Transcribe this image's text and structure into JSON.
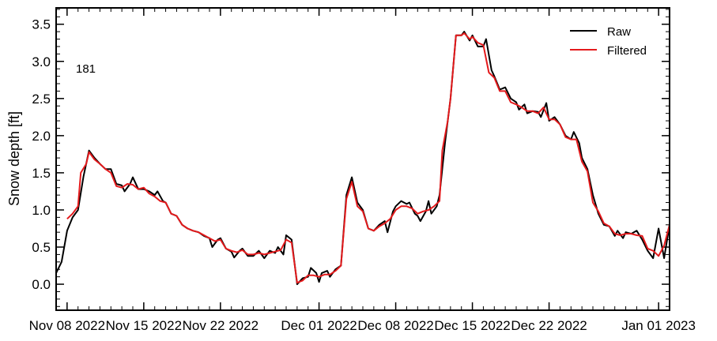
{
  "chart_data": {
    "type": "line",
    "title": "",
    "xlabel": "",
    "ylabel": "Snow depth [ft]",
    "annotation": "181",
    "x_ticks": [
      "Nov 08 2022",
      "Nov 15 2022",
      "Nov 22 2022",
      "Dec 01 2022",
      "Dec 08 2022",
      "Dec 15 2022",
      "Dec 22 2022",
      "Jan 01 2023"
    ],
    "y_ticks": [
      "0.0",
      "0.5",
      "1.0",
      "1.5",
      "2.0",
      "2.5",
      "3.0",
      "3.5"
    ],
    "xlim": [
      "2022-11-07",
      "2023-01-02"
    ],
    "ylim": [
      -0.35,
      3.72
    ],
    "grid": false,
    "legend_position": "top-right",
    "series": [
      {
        "name": "Raw",
        "color": "#000000",
        "points": [
          [
            "2022-11-07",
            0.15
          ],
          [
            "2022-11-07T12",
            0.3
          ],
          [
            "2022-11-08",
            0.72
          ],
          [
            "2022-11-08T12",
            0.9
          ],
          [
            "2022-11-09",
            1.0
          ],
          [
            "2022-11-09T12",
            1.45
          ],
          [
            "2022-11-10",
            1.8
          ],
          [
            "2022-11-10T12",
            1.7
          ],
          [
            "2022-11-11",
            1.62
          ],
          [
            "2022-11-11T12",
            1.55
          ],
          [
            "2022-11-12",
            1.55
          ],
          [
            "2022-11-12T12",
            1.35
          ],
          [
            "2022-11-13",
            1.33
          ],
          [
            "2022-11-13T06",
            1.25
          ],
          [
            "2022-11-13T18",
            1.35
          ],
          [
            "2022-11-14",
            1.44
          ],
          [
            "2022-11-14T12",
            1.28
          ],
          [
            "2022-11-15",
            1.28
          ],
          [
            "2022-11-15T12",
            1.25
          ],
          [
            "2022-11-16",
            1.2
          ],
          [
            "2022-11-16T06",
            1.25
          ],
          [
            "2022-11-16T18",
            1.12
          ],
          [
            "2022-11-17",
            1.1
          ],
          [
            "2022-11-17T12",
            0.95
          ],
          [
            "2022-11-18",
            0.92
          ],
          [
            "2022-11-18T12",
            0.8
          ],
          [
            "2022-11-19",
            0.75
          ],
          [
            "2022-11-19T12",
            0.72
          ],
          [
            "2022-11-20",
            0.7
          ],
          [
            "2022-11-20T12",
            0.65
          ],
          [
            "2022-11-21",
            0.62
          ],
          [
            "2022-11-21T06",
            0.5
          ],
          [
            "2022-11-21T18",
            0.6
          ],
          [
            "2022-11-22",
            0.62
          ],
          [
            "2022-11-22T12",
            0.48
          ],
          [
            "2022-11-23",
            0.44
          ],
          [
            "2022-11-23T06",
            0.36
          ],
          [
            "2022-11-23T18",
            0.45
          ],
          [
            "2022-11-24",
            0.48
          ],
          [
            "2022-11-24T12",
            0.38
          ],
          [
            "2022-11-25",
            0.38
          ],
          [
            "2022-11-25T12",
            0.45
          ],
          [
            "2022-11-26",
            0.35
          ],
          [
            "2022-11-26T12",
            0.45
          ],
          [
            "2022-11-27",
            0.42
          ],
          [
            "2022-11-27T06",
            0.5
          ],
          [
            "2022-11-27T18",
            0.4
          ],
          [
            "2022-11-28",
            0.66
          ],
          [
            "2022-11-28T12",
            0.6
          ],
          [
            "2022-11-29",
            0.0
          ],
          [
            "2022-11-29T12",
            0.08
          ],
          [
            "2022-11-30",
            0.1
          ],
          [
            "2022-11-30T06",
            0.22
          ],
          [
            "2022-11-30T18",
            0.15
          ],
          [
            "2022-12-01",
            0.03
          ],
          [
            "2022-12-01T06",
            0.15
          ],
          [
            "2022-12-01T18",
            0.18
          ],
          [
            "2022-12-02",
            0.1
          ],
          [
            "2022-12-02T12",
            0.2
          ],
          [
            "2022-12-03",
            0.25
          ],
          [
            "2022-12-03T12",
            1.2
          ],
          [
            "2022-12-04",
            1.44
          ],
          [
            "2022-12-04T12",
            1.1
          ],
          [
            "2022-12-05",
            1.0
          ],
          [
            "2022-12-05T12",
            0.75
          ],
          [
            "2022-12-06",
            0.72
          ],
          [
            "2022-12-06T12",
            0.8
          ],
          [
            "2022-12-07",
            0.85
          ],
          [
            "2022-12-07T06",
            0.7
          ],
          [
            "2022-12-07T18",
            0.98
          ],
          [
            "2022-12-08",
            1.05
          ],
          [
            "2022-12-08T12",
            1.12
          ],
          [
            "2022-12-09",
            1.08
          ],
          [
            "2022-12-09T06",
            1.1
          ],
          [
            "2022-12-09T18",
            0.95
          ],
          [
            "2022-12-10",
            0.92
          ],
          [
            "2022-12-10T06",
            0.85
          ],
          [
            "2022-12-10T18",
            0.98
          ],
          [
            "2022-12-11",
            1.12
          ],
          [
            "2022-12-11T06",
            0.95
          ],
          [
            "2022-12-11T18",
            1.05
          ],
          [
            "2022-12-12",
            1.2
          ],
          [
            "2022-12-12T12",
            1.9
          ],
          [
            "2022-12-13",
            2.5
          ],
          [
            "2022-12-13T12",
            3.35
          ],
          [
            "2022-12-14",
            3.35
          ],
          [
            "2022-12-14T06",
            3.4
          ],
          [
            "2022-12-14T18",
            3.28
          ],
          [
            "2022-12-15",
            3.35
          ],
          [
            "2022-12-15T12",
            3.2
          ],
          [
            "2022-12-16",
            3.2
          ],
          [
            "2022-12-16T06",
            3.3
          ],
          [
            "2022-12-16T18",
            2.88
          ],
          [
            "2022-12-17",
            2.8
          ],
          [
            "2022-12-17T12",
            2.62
          ],
          [
            "2022-12-18",
            2.65
          ],
          [
            "2022-12-18T12",
            2.5
          ],
          [
            "2022-12-19",
            2.45
          ],
          [
            "2022-12-19T06",
            2.35
          ],
          [
            "2022-12-19T18",
            2.42
          ],
          [
            "2022-12-20",
            2.3
          ],
          [
            "2022-12-20T12",
            2.33
          ],
          [
            "2022-12-21",
            2.32
          ],
          [
            "2022-12-21T06",
            2.25
          ],
          [
            "2022-12-21T18",
            2.44
          ],
          [
            "2022-12-22",
            2.2
          ],
          [
            "2022-12-22T12",
            2.25
          ],
          [
            "2022-12-23",
            2.15
          ],
          [
            "2022-12-23T12",
            2.0
          ],
          [
            "2022-12-24",
            1.95
          ],
          [
            "2022-12-24T06",
            2.05
          ],
          [
            "2022-12-24T18",
            1.9
          ],
          [
            "2022-12-25",
            1.7
          ],
          [
            "2022-12-25T12",
            1.55
          ],
          [
            "2022-12-26",
            1.2
          ],
          [
            "2022-12-26T12",
            0.95
          ],
          [
            "2022-12-27",
            0.8
          ],
          [
            "2022-12-27T12",
            0.78
          ],
          [
            "2022-12-28",
            0.65
          ],
          [
            "2022-12-28T06",
            0.72
          ],
          [
            "2022-12-28T18",
            0.62
          ],
          [
            "2022-12-29",
            0.7
          ],
          [
            "2022-12-29T12",
            0.68
          ],
          [
            "2022-12-30",
            0.72
          ],
          [
            "2022-12-30T12",
            0.6
          ],
          [
            "2022-12-31",
            0.45
          ],
          [
            "2022-12-31T12",
            0.35
          ],
          [
            "2023-01-01",
            0.75
          ],
          [
            "2023-01-01T12",
            0.35
          ],
          [
            "2023-01-02",
            0.8
          ]
        ]
      },
      {
        "name": "Filtered",
        "color": "#e41a1c",
        "points": [
          [
            "2022-11-08",
            0.88
          ],
          [
            "2022-11-08T12",
            0.95
          ],
          [
            "2022-11-09",
            1.05
          ],
          [
            "2022-11-09T06",
            1.5
          ],
          [
            "2022-11-09T18",
            1.62
          ],
          [
            "2022-11-10",
            1.78
          ],
          [
            "2022-11-10T12",
            1.68
          ],
          [
            "2022-11-11",
            1.62
          ],
          [
            "2022-11-11T12",
            1.55
          ],
          [
            "2022-11-12",
            1.5
          ],
          [
            "2022-11-12T12",
            1.32
          ],
          [
            "2022-11-13",
            1.3
          ],
          [
            "2022-11-13T12",
            1.35
          ],
          [
            "2022-11-14",
            1.34
          ],
          [
            "2022-11-14T12",
            1.28
          ],
          [
            "2022-11-15",
            1.3
          ],
          [
            "2022-11-15T12",
            1.22
          ],
          [
            "2022-11-16",
            1.18
          ],
          [
            "2022-11-16T12",
            1.12
          ],
          [
            "2022-11-17",
            1.1
          ],
          [
            "2022-11-17T12",
            0.95
          ],
          [
            "2022-11-18",
            0.92
          ],
          [
            "2022-11-18T12",
            0.8
          ],
          [
            "2022-11-19",
            0.75
          ],
          [
            "2022-11-19T12",
            0.72
          ],
          [
            "2022-11-20",
            0.7
          ],
          [
            "2022-11-20T12",
            0.66
          ],
          [
            "2022-11-21",
            0.62
          ],
          [
            "2022-11-21T12",
            0.58
          ],
          [
            "2022-11-22",
            0.6
          ],
          [
            "2022-11-22T12",
            0.48
          ],
          [
            "2022-11-23",
            0.45
          ],
          [
            "2022-11-23T12",
            0.43
          ],
          [
            "2022-11-24",
            0.46
          ],
          [
            "2022-11-24T12",
            0.4
          ],
          [
            "2022-11-25",
            0.4
          ],
          [
            "2022-11-25T12",
            0.42
          ],
          [
            "2022-11-26",
            0.4
          ],
          [
            "2022-11-26T12",
            0.42
          ],
          [
            "2022-11-27",
            0.44
          ],
          [
            "2022-11-27T12",
            0.46
          ],
          [
            "2022-11-28",
            0.6
          ],
          [
            "2022-11-28T12",
            0.56
          ],
          [
            "2022-11-29",
            0.02
          ],
          [
            "2022-11-29T12",
            0.05
          ],
          [
            "2022-11-30",
            0.12
          ],
          [
            "2022-11-30T12",
            0.12
          ],
          [
            "2022-12-01",
            0.1
          ],
          [
            "2022-12-01T12",
            0.13
          ],
          [
            "2022-12-02",
            0.13
          ],
          [
            "2022-12-02T12",
            0.18
          ],
          [
            "2022-12-03",
            0.25
          ],
          [
            "2022-12-03T12",
            1.15
          ],
          [
            "2022-12-04",
            1.38
          ],
          [
            "2022-12-04T12",
            1.05
          ],
          [
            "2022-12-05",
            0.98
          ],
          [
            "2022-12-05T12",
            0.75
          ],
          [
            "2022-12-06",
            0.72
          ],
          [
            "2022-12-06T12",
            0.78
          ],
          [
            "2022-12-07",
            0.82
          ],
          [
            "2022-12-07T12",
            0.88
          ],
          [
            "2022-12-08",
            1.0
          ],
          [
            "2022-12-08T12",
            1.05
          ],
          [
            "2022-12-09",
            1.05
          ],
          [
            "2022-12-09T12",
            1.02
          ],
          [
            "2022-12-10",
            0.95
          ],
          [
            "2022-12-10T12",
            0.98
          ],
          [
            "2022-12-11",
            1.0
          ],
          [
            "2022-12-11T12",
            1.05
          ],
          [
            "2022-12-12",
            1.12
          ],
          [
            "2022-12-12T06",
            1.8
          ],
          [
            "2022-12-12T18",
            2.2
          ],
          [
            "2022-12-13",
            2.5
          ],
          [
            "2022-12-13T12",
            3.35
          ],
          [
            "2022-12-14",
            3.35
          ],
          [
            "2022-12-14T06",
            3.38
          ],
          [
            "2022-12-14T18",
            3.3
          ],
          [
            "2022-12-15",
            3.33
          ],
          [
            "2022-12-15T12",
            3.25
          ],
          [
            "2022-12-16",
            3.22
          ],
          [
            "2022-12-16T12",
            2.85
          ],
          [
            "2022-12-17",
            2.78
          ],
          [
            "2022-12-17T12",
            2.6
          ],
          [
            "2022-12-18",
            2.6
          ],
          [
            "2022-12-18T12",
            2.45
          ],
          [
            "2022-12-19",
            2.42
          ],
          [
            "2022-12-19T12",
            2.38
          ],
          [
            "2022-12-20",
            2.33
          ],
          [
            "2022-12-20T12",
            2.33
          ],
          [
            "2022-12-21",
            2.3
          ],
          [
            "2022-12-21T12",
            2.38
          ],
          [
            "2022-12-22",
            2.22
          ],
          [
            "2022-12-22T12",
            2.22
          ],
          [
            "2022-12-23",
            2.15
          ],
          [
            "2022-12-23T12",
            1.98
          ],
          [
            "2022-12-24",
            1.95
          ],
          [
            "2022-12-24T12",
            1.95
          ],
          [
            "2022-12-25",
            1.65
          ],
          [
            "2022-12-25T12",
            1.52
          ],
          [
            "2022-12-26",
            1.1
          ],
          [
            "2022-12-26T12",
            0.98
          ],
          [
            "2022-12-27",
            0.82
          ],
          [
            "2022-12-27T12",
            0.78
          ],
          [
            "2022-12-28",
            0.68
          ],
          [
            "2022-12-28T12",
            0.66
          ],
          [
            "2022-12-29",
            0.68
          ],
          [
            "2022-12-29T12",
            0.68
          ],
          [
            "2022-12-30",
            0.66
          ],
          [
            "2022-12-30T12",
            0.65
          ],
          [
            "2022-12-31",
            0.48
          ],
          [
            "2022-12-31T12",
            0.45
          ],
          [
            "2023-01-01",
            0.38
          ],
          [
            "2023-01-01T12",
            0.52
          ],
          [
            "2023-01-02",
            0.8
          ]
        ]
      }
    ]
  }
}
